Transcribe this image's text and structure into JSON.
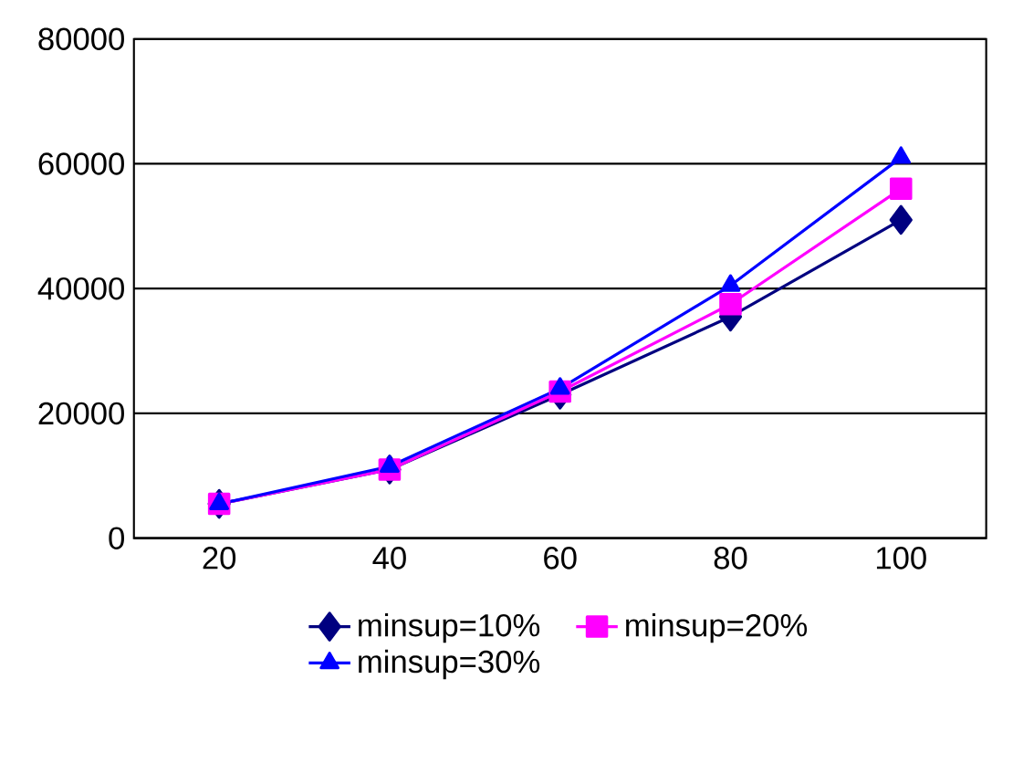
{
  "chart_data": {
    "type": "line",
    "categories": [
      "20",
      "40",
      "60",
      "80",
      "100"
    ],
    "series": [
      {
        "name": "minsup=10%",
        "color": "#000080",
        "marker": "diamond",
        "values": [
          5500,
          11000,
          23000,
          35500,
          51000
        ]
      },
      {
        "name": "minsup=20%",
        "color": "#ff00ff",
        "marker": "square",
        "values": [
          5500,
          11000,
          23500,
          37500,
          56000
        ]
      },
      {
        "name": "minsup=30%",
        "color": "#0000ff",
        "marker": "triangle",
        "values": [
          5500,
          11500,
          24000,
          40500,
          61000
        ]
      }
    ],
    "ylim": [
      0,
      80000
    ],
    "yticks": [
      0,
      20000,
      40000,
      60000,
      80000
    ],
    "grid": "y",
    "legend": "bottom"
  }
}
